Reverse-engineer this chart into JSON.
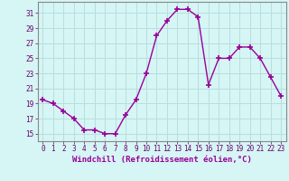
{
  "x": [
    0,
    1,
    2,
    3,
    4,
    5,
    6,
    7,
    8,
    9,
    10,
    11,
    12,
    13,
    14,
    15,
    16,
    17,
    18,
    19,
    20,
    21,
    22,
    23
  ],
  "y": [
    19.5,
    19.0,
    18.0,
    17.0,
    15.5,
    15.5,
    15.0,
    15.0,
    17.5,
    19.5,
    23.0,
    28.0,
    30.0,
    31.5,
    31.5,
    30.5,
    21.5,
    25.0,
    25.0,
    26.5,
    26.5,
    25.0,
    22.5,
    20.0
  ],
  "line_color": "#990099",
  "marker": "+",
  "markersize": 4,
  "linewidth": 1.0,
  "xlabel": "Windchill (Refroidissement éolien,°C)",
  "xlabel_fontsize": 6.5,
  "yticks": [
    15,
    17,
    19,
    21,
    23,
    25,
    27,
    29,
    31
  ],
  "xticks": [
    0,
    1,
    2,
    3,
    4,
    5,
    6,
    7,
    8,
    9,
    10,
    11,
    12,
    13,
    14,
    15,
    16,
    17,
    18,
    19,
    20,
    21,
    22,
    23
  ],
  "ylim": [
    14.0,
    32.5
  ],
  "xlim": [
    -0.5,
    23.5
  ],
  "background_color": "#d6f5f5",
  "grid_color": "#b8dede",
  "tick_fontsize": 5.5,
  "spine_color": "#888888"
}
